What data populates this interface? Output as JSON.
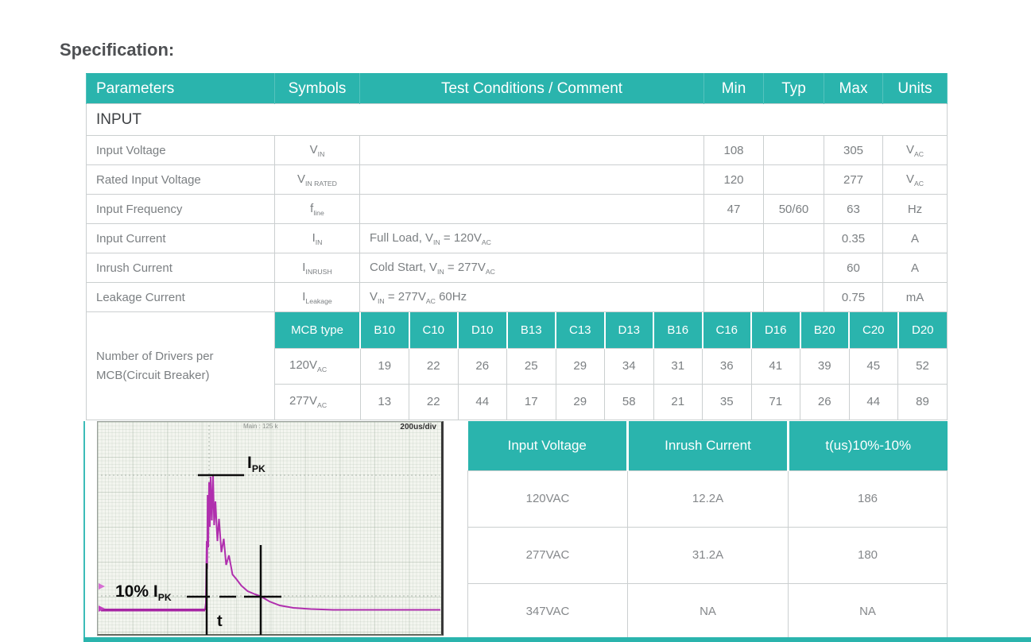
{
  "title": "Specification:",
  "colors": {
    "accent_teal": "#2AB4AD",
    "trace_magenta": "#B02FAE",
    "annotation_black": "#0C0C0C"
  },
  "spec": {
    "headers": [
      "Parameters",
      "Symbols",
      "Test Conditions / Comment",
      "Min",
      "Typ",
      "Max",
      "Units"
    ],
    "section_label": "INPUT",
    "rows": [
      {
        "param": "Input Voltage",
        "symbol": "V_{IN}",
        "condition": "",
        "min": "108",
        "typ": "",
        "max": "305",
        "units": "V_{AC}"
      },
      {
        "param": "Rated Input Voltage",
        "symbol": "V_{IN RATED}",
        "condition": "",
        "min": "120",
        "typ": "",
        "max": "277",
        "units": "V_{AC}"
      },
      {
        "param": "Input Frequency",
        "symbol": "f_{line}",
        "condition": "",
        "min": "47",
        "typ": "50/60",
        "max": "63",
        "units": "Hz"
      },
      {
        "param": "Input Current",
        "symbol": "I_{IN}",
        "condition": "Full Load, V_{IN} = 120V_{AC}",
        "min": "",
        "typ": "",
        "max": "0.35",
        "units": "A"
      },
      {
        "param": "Inrush Current",
        "symbol": "I_{INRUSH}",
        "condition": "Cold Start, V_{IN} = 277V_{AC}",
        "min": "",
        "typ": "",
        "max": "60",
        "units": "A"
      },
      {
        "param": "Leakage Current",
        "symbol": "I_{Leakage}",
        "condition": "V_{IN} = 277V_{AC} 60Hz",
        "min": "",
        "typ": "",
        "max": "0.75",
        "units": "mA"
      }
    ]
  },
  "mcb": {
    "label": "Number of Drivers per MCB(Circuit Breaker)",
    "headers": [
      "MCB type",
      "B10",
      "C10",
      "D10",
      "B13",
      "C13",
      "D13",
      "B16",
      "C16",
      "D16",
      "B20",
      "C20",
      "D20"
    ],
    "rows": [
      {
        "label": "120V_{AC}",
        "values": [
          "19",
          "22",
          "26",
          "25",
          "29",
          "34",
          "31",
          "36",
          "41",
          "39",
          "45",
          "52"
        ]
      },
      {
        "label": "277V_{AC}",
        "values": [
          "13",
          "22",
          "44",
          "17",
          "29",
          "58",
          "21",
          "35",
          "71",
          "26",
          "44",
          "89"
        ]
      }
    ]
  },
  "scope": {
    "main_label": "Main : 125 k",
    "timebase_label": "200us/div",
    "peak_label": "I_{PK}",
    "ten_percent_label": "10% I_{PK}",
    "time_label": "t"
  },
  "inrush": {
    "headers": [
      "Input Voltage",
      "Inrush Current",
      "t(us)10%-10%"
    ],
    "rows": [
      [
        "120VAC",
        "12.2A",
        "186"
      ],
      [
        "277VAC",
        "31.2A",
        "180"
      ],
      [
        "347VAC",
        "NA",
        "NA"
      ]
    ]
  }
}
